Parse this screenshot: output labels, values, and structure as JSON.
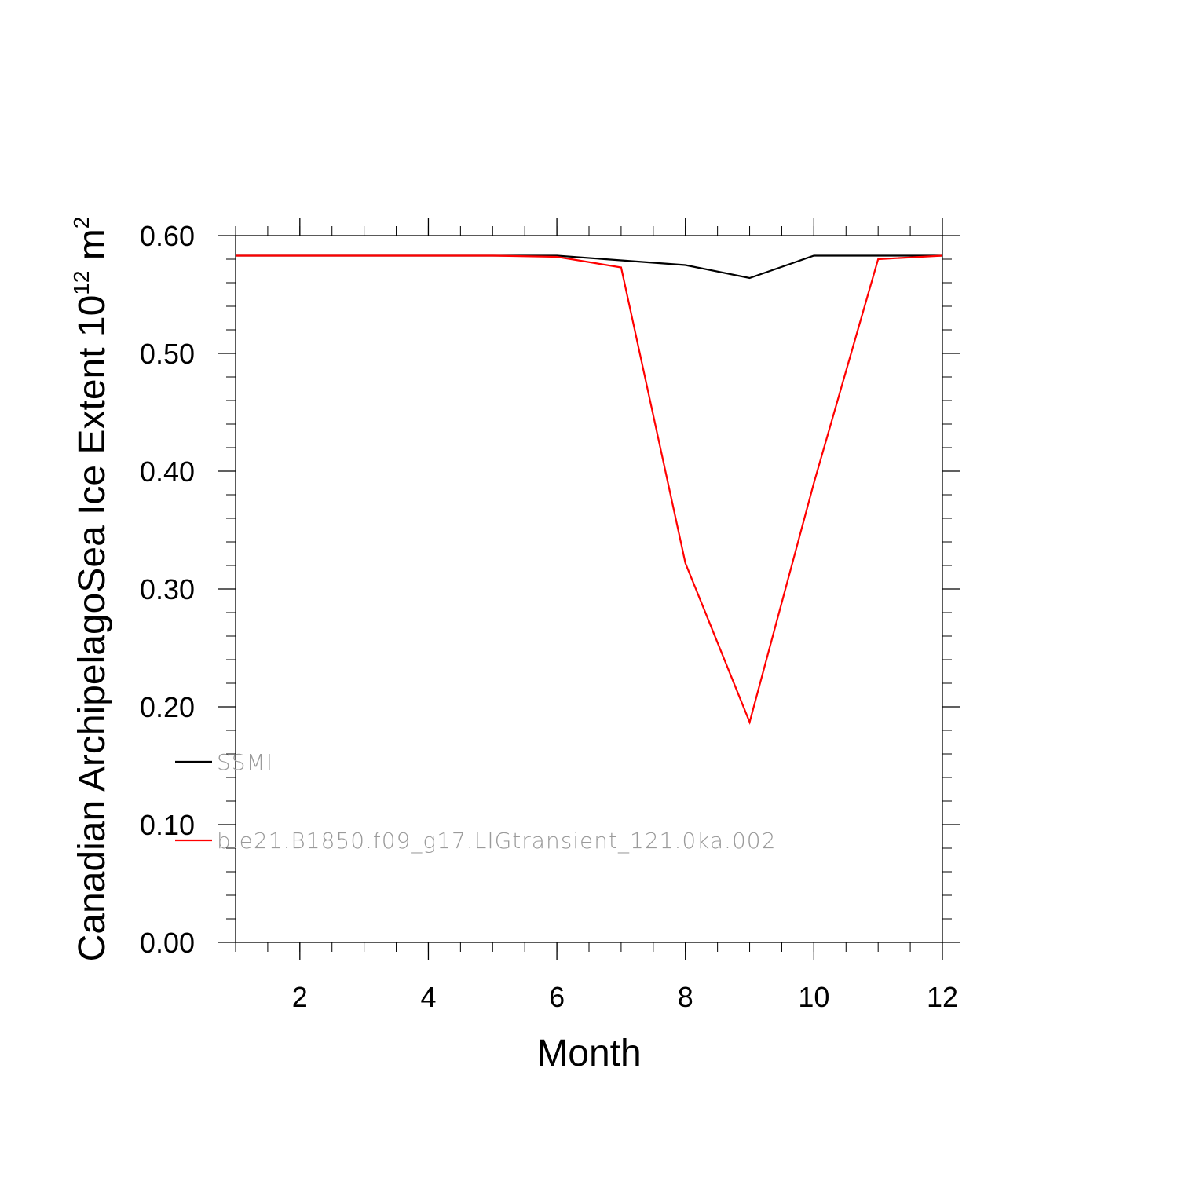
{
  "chart_data": {
    "type": "line",
    "xlabel": "Month",
    "ylabel": {
      "main": "Canadian ArchipelagoSea Ice Extent 10",
      "exp1": "12",
      "unit": " m",
      "exp2": "2"
    },
    "xlim": [
      1,
      12
    ],
    "ylim": [
      0,
      0.6
    ],
    "xticks": [
      2,
      4,
      6,
      8,
      10,
      12
    ],
    "yticks": [
      0.0,
      0.1,
      0.2,
      0.3,
      0.4,
      0.5,
      0.6
    ],
    "ytick_labels": [
      "0.00",
      "0.10",
      "0.20",
      "0.30",
      "0.40",
      "0.50",
      "0.60"
    ],
    "x": [
      1,
      2,
      3,
      4,
      5,
      6,
      7,
      8,
      9,
      10,
      11,
      12
    ],
    "series": [
      {
        "name": "SSMI",
        "color": "#000000",
        "values": [
          0.583,
          0.583,
          0.583,
          0.583,
          0.583,
          0.583,
          0.579,
          0.575,
          0.564,
          0.583,
          0.583,
          0.583
        ]
      },
      {
        "name": "b.e21.B1850.f09_g17.LIGtransient_121.0ka.002",
        "color": "#ff0000",
        "values": [
          0.583,
          0.583,
          0.583,
          0.583,
          0.583,
          0.582,
          0.573,
          0.322,
          0.187,
          0.39,
          0.58,
          0.583
        ]
      }
    ],
    "grid": false,
    "legend_position": "inside-bottom-left"
  }
}
